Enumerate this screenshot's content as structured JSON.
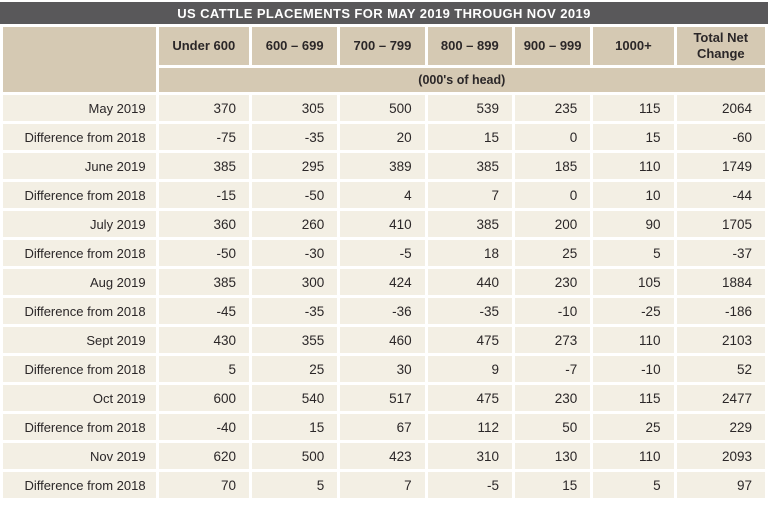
{
  "title": "US CATTLE PLACEMENTS FOR MAY 2019 THROUGH NOV 2019",
  "colors": {
    "title_bar_bg": "#59585a",
    "title_text": "#ffffff",
    "header_bg": "#d5c9b3",
    "cell_bg": "#f3efe4",
    "text": "#2b2728",
    "divider": "#ffffff"
  },
  "chart_data": {
    "type": "table",
    "title": "US CATTLE PLACEMENTS FOR MAY 2019 THROUGH NOV 2019",
    "unit_label": "(000's of head)",
    "columns": [
      "Under 600",
      "600 – 699",
      "700 – 799",
      "800 – 899",
      "900 – 999",
      "1000+",
      "Total Net Change"
    ],
    "rows": [
      {
        "label": "May 2019",
        "values": [
          370,
          305,
          500,
          539,
          235,
          115,
          2064
        ]
      },
      {
        "label": "Difference from 2018",
        "values": [
          -75,
          -35,
          20,
          15,
          0,
          15,
          -60
        ]
      },
      {
        "label": "June 2019",
        "values": [
          385,
          295,
          389,
          385,
          185,
          110,
          1749
        ]
      },
      {
        "label": "Difference from 2018",
        "values": [
          -15,
          -50,
          4,
          7,
          0,
          10,
          -44
        ]
      },
      {
        "label": "July 2019",
        "values": [
          360,
          260,
          410,
          385,
          200,
          90,
          1705
        ]
      },
      {
        "label": "Difference from 2018",
        "values": [
          -50,
          -30,
          -5,
          18,
          25,
          5,
          -37
        ]
      },
      {
        "label": "Aug 2019",
        "values": [
          385,
          300,
          424,
          440,
          230,
          105,
          1884
        ]
      },
      {
        "label": "Difference from 2018",
        "values": [
          -45,
          -35,
          -36,
          -35,
          -10,
          -25,
          -186
        ]
      },
      {
        "label": "Sept 2019",
        "values": [
          430,
          355,
          460,
          475,
          273,
          110,
          2103
        ]
      },
      {
        "label": "Difference from 2018",
        "values": [
          5,
          25,
          30,
          9,
          -7,
          -10,
          52
        ]
      },
      {
        "label": "Oct 2019",
        "values": [
          600,
          540,
          517,
          475,
          230,
          115,
          2477
        ]
      },
      {
        "label": "Difference from 2018",
        "values": [
          -40,
          15,
          67,
          112,
          50,
          25,
          229
        ]
      },
      {
        "label": "Nov 2019",
        "values": [
          620,
          500,
          423,
          310,
          130,
          110,
          2093
        ]
      },
      {
        "label": "Difference from 2018",
        "values": [
          70,
          5,
          7,
          -5,
          15,
          5,
          97
        ]
      }
    ]
  }
}
